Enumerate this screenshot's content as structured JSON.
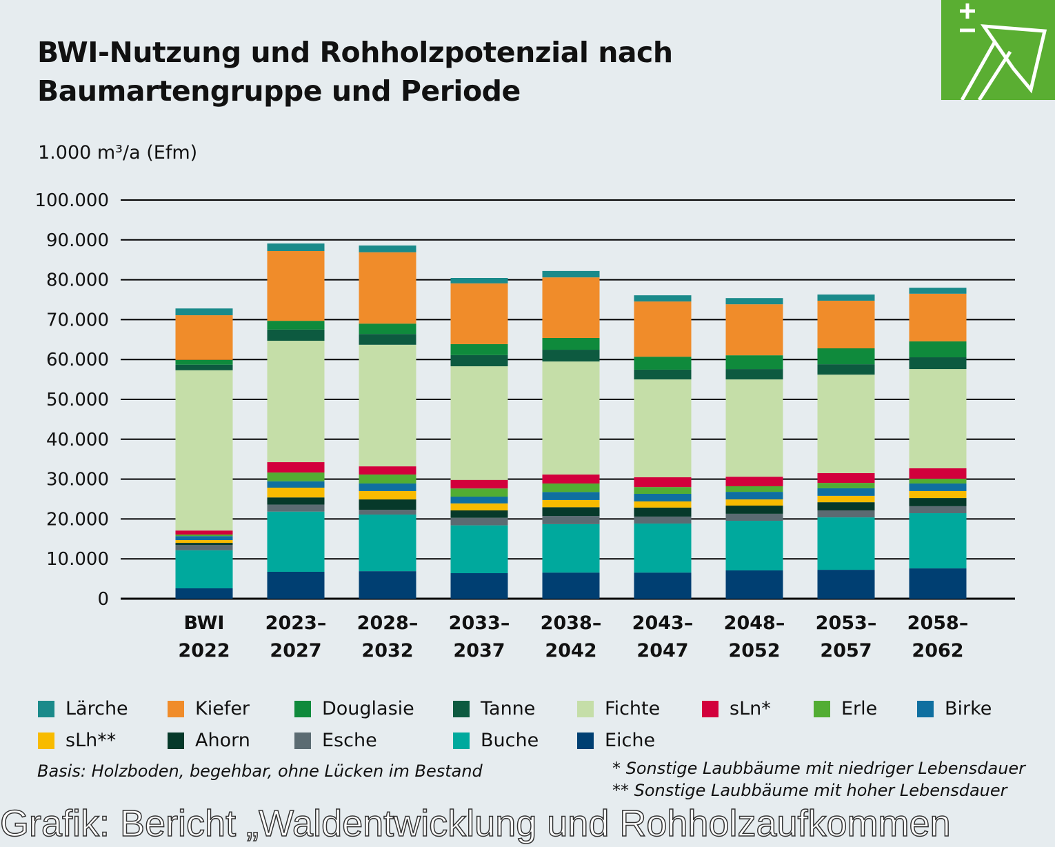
{
  "title_line1": "BWI-Nutzung und Rohholzpotenzial nach",
  "title_line2": "Baumartengruppe und Periode",
  "footnotes": {
    "basis": "Basis: Holzboden, begehbar, ohne Lücken im Bestand",
    "note1": "* Sonstige Laubbäume mit niedriger Lebensdauer",
    "note2": "** Sonstige Laubbäume mit hoher Lebensdauer"
  },
  "watermark": "Grafik: Bericht „Waldentwicklung und Rohholzaufkommen",
  "logo": {
    "icon": "axe-plus-minus-icon",
    "color": "#5aae32"
  },
  "chart_data": {
    "type": "bar",
    "stacked": true,
    "ylabel": "1.000 m³/a (Efm)",
    "ylim": [
      0,
      100000
    ],
    "yticks": [
      0,
      10000,
      20000,
      30000,
      40000,
      50000,
      60000,
      70000,
      80000,
      90000,
      100000
    ],
    "ytick_labels": [
      "0",
      "10.000",
      "20.000",
      "30.000",
      "40.000",
      "50.000",
      "60.000",
      "70.000",
      "80.000",
      "90.000",
      "100.000"
    ],
    "grid": true,
    "legend_position": "bottom",
    "categories": [
      [
        "BWI",
        "2022"
      ],
      [
        "2023–",
        "2027"
      ],
      [
        "2028–",
        "2032"
      ],
      [
        "2033–",
        "2037"
      ],
      [
        "2038–",
        "2042"
      ],
      [
        "2043–",
        "2047"
      ],
      [
        "2048–",
        "2052"
      ],
      [
        "2053–",
        "2057"
      ],
      [
        "2058–",
        "2062"
      ]
    ],
    "series": [
      {
        "name": "Eiche",
        "color": "#003f72",
        "values": [
          2600,
          6750,
          6900,
          6400,
          6550,
          6550,
          7100,
          7250,
          7600
        ]
      },
      {
        "name": "Buche",
        "color": "#00a99d",
        "values": [
          9550,
          15100,
          14200,
          12000,
          12150,
          12300,
          12450,
          13150,
          13850
        ]
      },
      {
        "name": "Esche",
        "color": "#5b6b72",
        "values": [
          1350,
          1750,
          1200,
          1900,
          2050,
          1750,
          1750,
          1750,
          1750
        ]
      },
      {
        "name": "Ahorn",
        "color": "#06392a",
        "values": [
          500,
          1800,
          2600,
          1850,
          2200,
          2250,
          2050,
          2050,
          2050
        ]
      },
      {
        "name": "sLh**",
        "color": "#f8bb00",
        "values": [
          700,
          2450,
          2100,
          1750,
          1800,
          1550,
          1550,
          1600,
          1750
        ]
      },
      {
        "name": "Birke",
        "color": "#0f6fa0",
        "values": [
          1000,
          1600,
          1900,
          1700,
          2000,
          1900,
          1900,
          1900,
          1900
        ]
      },
      {
        "name": "Erle",
        "color": "#52ad33",
        "values": [
          400,
          2200,
          2250,
          2050,
          2150,
          1700,
          1400,
          1350,
          1200
        ]
      },
      {
        "name": "sLn*",
        "color": "#d2003c",
        "values": [
          1000,
          2600,
          2050,
          2150,
          2250,
          2450,
          2400,
          2450,
          2600
        ]
      },
      {
        "name": "Fichte",
        "color": "#c5dea8",
        "values": [
          40200,
          30450,
          30500,
          28500,
          28350,
          24550,
          24400,
          24700,
          24900
        ]
      },
      {
        "name": "Tanne",
        "color": "#0d5a40",
        "values": [
          1400,
          2800,
          2700,
          2800,
          2950,
          2450,
          2600,
          2600,
          2950
        ]
      },
      {
        "name": "Douglasie",
        "color": "#0f8a3c",
        "values": [
          1200,
          2200,
          2600,
          2750,
          2950,
          3250,
          3450,
          4000,
          4000
        ]
      },
      {
        "name": "Kiefer",
        "color": "#f08c2a",
        "values": [
          11200,
          17500,
          17900,
          15250,
          15200,
          13850,
          12800,
          11950,
          11950
        ]
      },
      {
        "name": "Lärche",
        "color": "#1a8a8a",
        "values": [
          1700,
          1900,
          1700,
          1350,
          1600,
          1550,
          1550,
          1550,
          1500
        ]
      }
    ],
    "legend_order": [
      "Lärche",
      "Kiefer",
      "Douglasie",
      "Tanne",
      "Fichte",
      "sLn*",
      "Erle",
      "Birke",
      "sLh**",
      "Ahorn",
      "Esche",
      "Buche",
      "Eiche"
    ]
  }
}
